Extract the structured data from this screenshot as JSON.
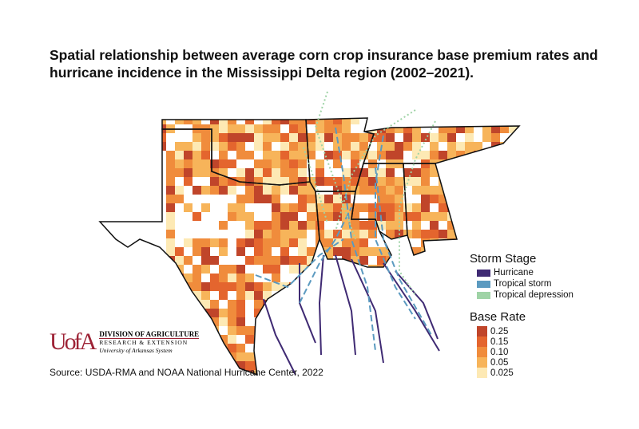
{
  "title": "Spatial relationship between average corn crop insurance base premium rates and hurricane incidence in the Mississippi Delta region (2002–2021).",
  "legend_storm": {
    "title": "Storm Stage",
    "items": [
      {
        "label": "Hurricane",
        "color": "#3f2a73"
      },
      {
        "label": "Tropical storm",
        "color": "#5b9ac0"
      },
      {
        "label": "Tropical depression",
        "color": "#9fd3a6"
      }
    ]
  },
  "legend_rate": {
    "title": "Base Rate",
    "items": [
      {
        "label": "0.25",
        "color": "#c0452a"
      },
      {
        "label": "0.15",
        "color": "#e4652e"
      },
      {
        "label": "0.10",
        "color": "#f08c3c"
      },
      {
        "label": "0.05",
        "color": "#f7b45a"
      },
      {
        "label": "0.025",
        "color": "#fde9b4"
      }
    ]
  },
  "logo": {
    "mark": "UofA",
    "line1": "DIVISION OF AGRICULTURE",
    "line2": "RESEARCH & EXTENSION",
    "line3": "University of Arkansas System"
  },
  "source": "Source: USDA-RMA and NOAA National Hurricane Center, 2022"
}
